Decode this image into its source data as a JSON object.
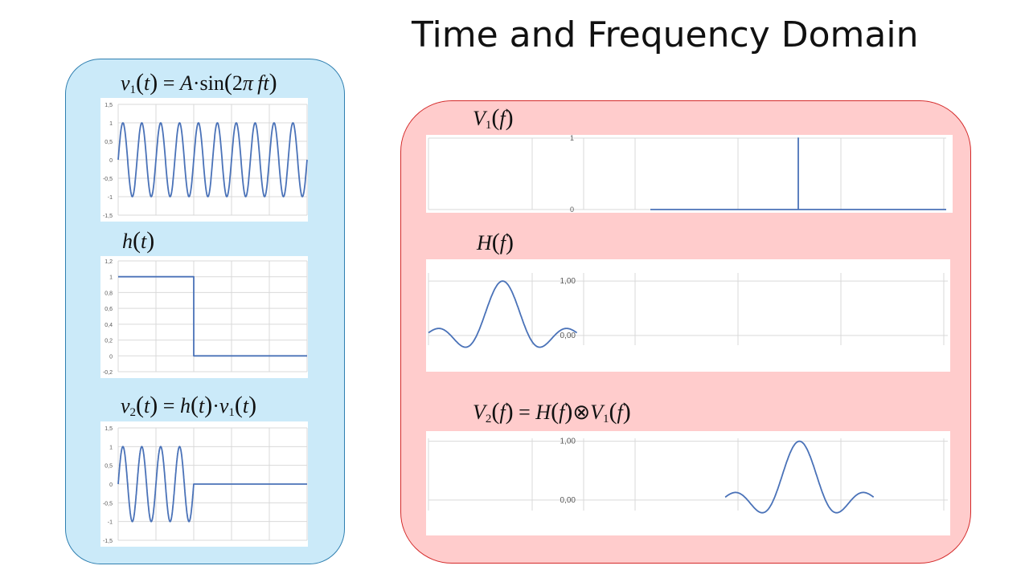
{
  "slide": {
    "title": "Time and Frequency Domain"
  },
  "time_panel": {
    "v1_formula": {
      "lhs_var": "v",
      "lhs_sub": "1",
      "arg": "t",
      "eq": "=",
      "amp": "A",
      "dot": "·",
      "fn": "sin",
      "two": "2",
      "pi": "π",
      "f": "f",
      "t": "t"
    },
    "h_formula": {
      "var": "h",
      "arg": "t"
    },
    "v2_formula": {
      "lhs_var": "v",
      "lhs_sub": "2",
      "arg": "t",
      "eq": "=",
      "h": "h",
      "h_arg": "t",
      "dot": "·",
      "v": "v",
      "v_sub": "1",
      "v_arg": "t"
    }
  },
  "freq_panel": {
    "V1_formula": {
      "var": "V",
      "sub": "1",
      "arg": "f"
    },
    "H_formula": {
      "var": "H",
      "arg": "f"
    },
    "V2_formula": {
      "lhs_var": "V",
      "lhs_sub": "2",
      "arg": "f",
      "eq": "=",
      "H": "H",
      "H_arg": "f",
      "op": "⊗",
      "V": "V",
      "V_sub": "1",
      "V_arg": "f"
    }
  },
  "chart_data": [
    {
      "type": "line",
      "id": "v1",
      "function": "sin",
      "cycles": 10,
      "amplitude": 1,
      "x": [
        0,
        10
      ],
      "ylim": [
        -1.5,
        1.5
      ],
      "yticks": [
        "1,5",
        "1",
        "0,5",
        "0",
        "-0,5",
        "-1",
        "-1,5"
      ],
      "ytick_values": [
        1.5,
        1,
        0.5,
        0,
        -0.5,
        -1,
        -1.5
      ],
      "grid": true,
      "color": "#4a72b8"
    },
    {
      "type": "line",
      "id": "h",
      "function": "step",
      "x": [
        0,
        10
      ],
      "step_end": 4,
      "high": 1,
      "low": 0,
      "ylim": [
        -0.2,
        1.2
      ],
      "yticks": [
        "1,2",
        "1",
        "0,8",
        "0,6",
        "0,4",
        "0,2",
        "0",
        "-0,2"
      ],
      "ytick_values": [
        1.2,
        1,
        0.8,
        0.6,
        0.4,
        0.2,
        0,
        -0.2
      ],
      "grid": true,
      "color": "#4a72b8"
    },
    {
      "type": "line",
      "id": "v2",
      "function": "gated-sin",
      "cycles_on": 4,
      "x": [
        0,
        10
      ],
      "step_end": 4,
      "ylim": [
        -1.5,
        1.5
      ],
      "yticks": [
        "1,5",
        "1",
        "0,5",
        "0",
        "-0,5",
        "-1",
        "-1,5"
      ],
      "ytick_values": [
        1.5,
        1,
        0.5,
        0,
        -0.5,
        -1,
        -1.5
      ],
      "grid": true,
      "color": "#4a72b8"
    },
    {
      "type": "line",
      "id": "V1",
      "function": "impulse",
      "x": [
        -3,
        4
      ],
      "impulse_at": 2,
      "baseline_from": 0,
      "ylim": [
        0,
        1
      ],
      "yticks": [
        "1",
        "0"
      ],
      "ytick_values": [
        1,
        0
      ],
      "grid": true,
      "color": "#4a72b8"
    },
    {
      "type": "line",
      "id": "H",
      "function": "sinc",
      "center": -2,
      "zero_spacing": 0.35,
      "span": 1,
      "x": [
        -3,
        4
      ],
      "ylim": [
        -0.18,
        1.15
      ],
      "yticks": [
        "1,00",
        "0,00"
      ],
      "ytick_values": [
        1,
        0
      ],
      "grid": true,
      "color": "#4a72b8"
    },
    {
      "type": "line",
      "id": "V2",
      "function": "sinc",
      "center": 2,
      "zero_spacing": 0.35,
      "span": 1,
      "x": [
        -3,
        4
      ],
      "ylim": [
        -0.18,
        1.05
      ],
      "yticks": [
        "1,00",
        "0,00"
      ],
      "ytick_values": [
        1,
        0
      ],
      "grid": true,
      "color": "#4a72b8"
    }
  ]
}
